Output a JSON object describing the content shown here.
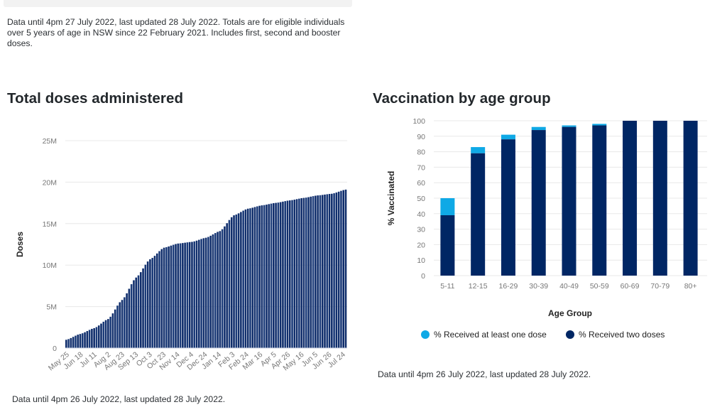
{
  "header": {
    "intro_text": "Data until 4pm 27 July 2022, last updated 28 July 2022. Totals are for eligible individuals over 5 years of age in NSW since 22 February 2021. Includes first, second and booster doses."
  },
  "colors": {
    "bar_dark": "#0f2d6b",
    "bar_dark_alt": "#1a3a78",
    "bar_gap": "#8fa3c8",
    "two_doses": "#002664",
    "one_dose": "#0fa9e6",
    "grid": "#e8e8e8",
    "tick_text": "#777777"
  },
  "left_panel": {
    "title": "Total doses administered",
    "note": "Data until 4pm 26 July 2022, last updated 28 July 2022."
  },
  "right_panel": {
    "title": "Vaccination by age group",
    "note": "Data until 4pm 26 July 2022, last updated 28 July 2022."
  },
  "chart_data": [
    {
      "type": "bar",
      "title": "Total doses administered",
      "xlabel": "",
      "ylabel": "Doses",
      "ylim": [
        0,
        25000000
      ],
      "yticks": [
        0,
        5000000,
        10000000,
        15000000,
        20000000,
        25000000
      ],
      "ytick_labels": [
        "0",
        "5M",
        "10M",
        "15M",
        "20M",
        "25M"
      ],
      "grid": true,
      "legend": "none",
      "categories": [
        "May 25",
        "Jun 18",
        "Jul 11",
        "Aug 2",
        "Aug 23",
        "Sep 13",
        "Oct 3",
        "Oct 23",
        "Nov 14",
        "Dec 4",
        "Dec 24",
        "Jan 14",
        "Feb 3",
        "Feb 24",
        "Mar 16",
        "Apr 5",
        "Apr 26",
        "May 16",
        "Jun 5",
        "Jun 26",
        "Jul 24"
      ],
      "values": [
        1000000,
        1700000,
        2400000,
        3500000,
        5800000,
        8500000,
        10700000,
        12100000,
        12600000,
        12800000,
        13300000,
        14100000,
        16000000,
        16800000,
        17200000,
        17500000,
        17800000,
        18100000,
        18400000,
        18600000,
        19100000
      ],
      "bars_between_labels": 6
    },
    {
      "type": "bar",
      "stacked": true,
      "title": "Vaccination by age group",
      "xlabel": "Age Group",
      "ylabel": "% Vaccinated",
      "ylim": [
        0,
        100
      ],
      "yticks": [
        0,
        10,
        20,
        30,
        40,
        50,
        60,
        70,
        80,
        90,
        100
      ],
      "grid": true,
      "legend": "bottom",
      "categories": [
        "5-11",
        "12-15",
        "16-29",
        "30-39",
        "40-49",
        "50-59",
        "60-69",
        "70-79",
        "80+"
      ],
      "series": [
        {
          "name": "% Received at least one dose",
          "color": "#0fa9e6",
          "values": [
            50,
            83,
            91,
            96,
            97,
            98,
            100,
            100,
            100
          ]
        },
        {
          "name": "% Received two doses",
          "color": "#002664",
          "values": [
            39,
            79,
            88,
            94,
            96,
            97,
            100,
            100,
            100
          ]
        }
      ]
    }
  ]
}
